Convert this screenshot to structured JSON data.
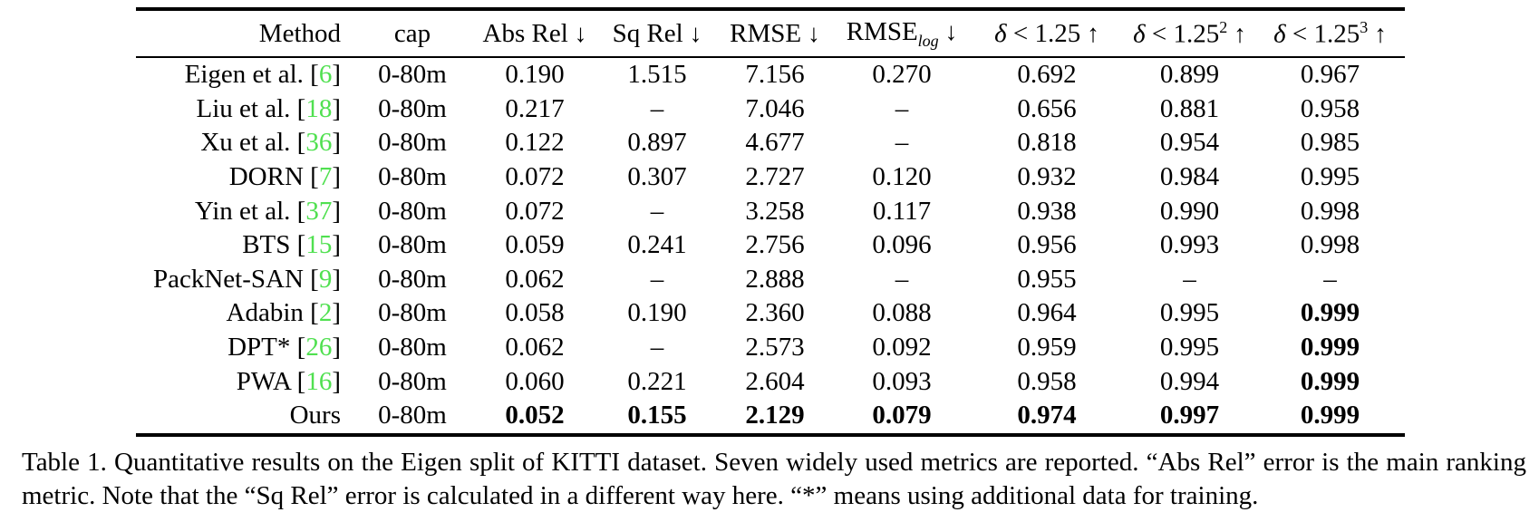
{
  "accent": {
    "cite_color": "#50e050",
    "text_color": "#000000"
  },
  "table": {
    "columns": [
      {
        "key": "method",
        "label": "Method"
      },
      {
        "key": "cap",
        "label": "cap"
      },
      {
        "key": "absrel",
        "label": "Abs Rel",
        "arrow": "↓"
      },
      {
        "key": "sqrel",
        "label": "Sq Rel",
        "arrow": "↓"
      },
      {
        "key": "rmse",
        "label": "RMSE",
        "arrow": "↓"
      },
      {
        "key": "rmselog",
        "label": "RMSE",
        "sub": "log",
        "arrow": "↓"
      },
      {
        "key": "d1",
        "label": "δ < 1.25",
        "arrow": "↑"
      },
      {
        "key": "d2",
        "label": "δ < 1.25",
        "sup": "2",
        "arrow": "↑"
      },
      {
        "key": "d3",
        "label": "δ < 1.25",
        "sup": "3",
        "arrow": "↑"
      }
    ],
    "rows": [
      {
        "method": "Eigen et al.",
        "cite": "6",
        "cap": "0-80m",
        "values": [
          "0.190",
          "1.515",
          "7.156",
          "0.270",
          "0.692",
          "0.899",
          "0.967"
        ],
        "bold": []
      },
      {
        "method": "Liu et al.",
        "cite": "18",
        "cap": "0-80m",
        "values": [
          "0.217",
          "–",
          "7.046",
          "–",
          "0.656",
          "0.881",
          "0.958"
        ],
        "bold": []
      },
      {
        "method": "Xu et al.",
        "cite": "36",
        "cap": "0-80m",
        "values": [
          "0.122",
          "0.897",
          "4.677",
          "–",
          "0.818",
          "0.954",
          "0.985"
        ],
        "bold": []
      },
      {
        "method": "DORN",
        "cite": "7",
        "cap": "0-80m",
        "values": [
          "0.072",
          "0.307",
          "2.727",
          "0.120",
          "0.932",
          "0.984",
          "0.995"
        ],
        "bold": []
      },
      {
        "method": "Yin et al.",
        "cite": "37",
        "cap": "0-80m",
        "values": [
          "0.072",
          "–",
          "3.258",
          "0.117",
          "0.938",
          "0.990",
          "0.998"
        ],
        "bold": []
      },
      {
        "method": "BTS",
        "cite": "15",
        "cap": "0-80m",
        "values": [
          "0.059",
          "0.241",
          "2.756",
          "0.096",
          "0.956",
          "0.993",
          "0.998"
        ],
        "bold": []
      },
      {
        "method": "PackNet-SAN",
        "cite": "9",
        "cap": "0-80m",
        "values": [
          "0.062",
          "–",
          "2.888",
          "–",
          "0.955",
          "–",
          "–"
        ],
        "bold": []
      },
      {
        "method": "Adabin",
        "cite": "2",
        "cap": "0-80m",
        "values": [
          "0.058",
          "0.190",
          "2.360",
          "0.088",
          "0.964",
          "0.995",
          "0.999"
        ],
        "bold": [
          6
        ]
      },
      {
        "method": "DPT*",
        "cite": "26",
        "cap": "0-80m",
        "values": [
          "0.062",
          "–",
          "2.573",
          "0.092",
          "0.959",
          "0.995",
          "0.999"
        ],
        "bold": [
          6
        ]
      },
      {
        "method": "PWA",
        "cite": "16",
        "cap": "0-80m",
        "values": [
          "0.060",
          "0.221",
          "2.604",
          "0.093",
          "0.958",
          "0.994",
          "0.999"
        ],
        "bold": [
          6
        ]
      },
      {
        "method": "Ours",
        "cite": null,
        "cap": "0-80m",
        "values": [
          "0.052",
          "0.155",
          "2.129",
          "0.079",
          "0.974",
          "0.997",
          "0.999"
        ],
        "bold": [
          0,
          1,
          2,
          3,
          4,
          5,
          6
        ]
      }
    ]
  },
  "caption": {
    "text": "Table 1.  Quantitative results on the Eigen split of KITTI dataset.  Seven widely used metrics are reported.  “Abs Rel” error is the main ranking metric. Note that the “Sq Rel” error is calculated in a different way here. “*” means using additional data for training."
  }
}
